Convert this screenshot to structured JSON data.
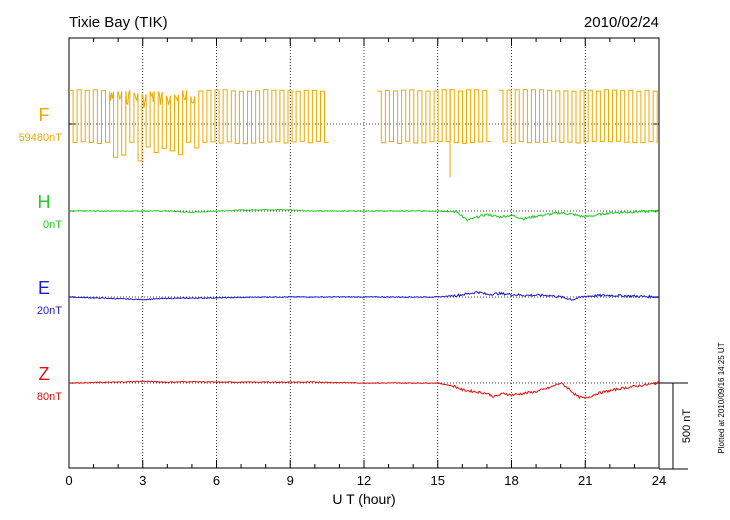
{
  "header": {
    "station": "Tixie Bay (TIK)",
    "date": "2010/02/24"
  },
  "footer": {
    "plotted": "Plotted at 2010/09/16 14:25 UT"
  },
  "colors": {
    "F": "#f0a800",
    "H": "#22cc22",
    "E": "#1a1acc",
    "Z": "#e01010",
    "axis": "#000000"
  },
  "chart_data": {
    "type": "line",
    "title": "Tixie Bay (TIK)",
    "xlabel": "U T (hour)",
    "xlim": [
      0,
      24
    ],
    "x_ticks": [
      "0",
      "3",
      "6",
      "9",
      "12",
      "15",
      "18",
      "21",
      "24"
    ],
    "grid": true,
    "scale_bar": "500 nT",
    "series": [
      {
        "name": "F",
        "baseline_label": "59480nT",
        "style": "square-wave",
        "gaps": [
          [
            10.4,
            12.4
          ],
          [
            17.0,
            17.3
          ]
        ],
        "spike": {
          "x": 15.5,
          "value": -310
        },
        "values_summary": {
          "high": 200,
          "low": -100,
          "noisy_range": [
            1.5,
            5.2
          ]
        }
      },
      {
        "name": "H",
        "baseline_label": "0nT",
        "x": [
          0,
          2,
          4,
          5,
          6,
          7,
          8,
          9,
          10,
          12,
          14,
          15,
          15.8,
          16.0,
          16.2,
          16.5,
          17.0,
          17.5,
          18.0,
          18.5,
          19.0,
          19.5,
          20.0,
          20.5,
          21.0,
          22.0,
          23.0,
          24.0
        ],
        "values": [
          0,
          0,
          0,
          -8,
          0,
          5,
          8,
          6,
          0,
          0,
          0,
          0,
          -5,
          -30,
          -55,
          -40,
          -20,
          -35,
          -25,
          -45,
          -30,
          -20,
          -10,
          -20,
          -35,
          -10,
          -5,
          0
        ]
      },
      {
        "name": "E",
        "baseline_label": "20nT",
        "x": [
          0,
          1,
          2,
          3,
          4,
          6,
          8,
          10,
          12,
          14,
          15,
          15.8,
          16.3,
          16.6,
          17.0,
          17.5,
          18.5,
          19.5,
          20.0,
          20.5,
          21.0,
          22.0,
          23.0,
          24.0
        ],
        "values": [
          0,
          -5,
          -10,
          -15,
          -8,
          -5,
          0,
          0,
          0,
          0,
          0,
          10,
          20,
          30,
          15,
          20,
          10,
          10,
          0,
          -15,
          5,
          10,
          5,
          0
        ]
      },
      {
        "name": "Z",
        "baseline_label": "80nT",
        "x": [
          0,
          2,
          3,
          4,
          5,
          6,
          8,
          10,
          12,
          14,
          15,
          15.7,
          16.0,
          16.5,
          17.0,
          17.3,
          17.7,
          18.0,
          18.5,
          19.0,
          19.5,
          20.0,
          20.3,
          20.7,
          21.0,
          21.5,
          22.5,
          23.5,
          24.0
        ],
        "values": [
          0,
          5,
          10,
          5,
          8,
          5,
          5,
          5,
          0,
          0,
          0,
          -20,
          -40,
          -50,
          -60,
          -80,
          -60,
          -70,
          -60,
          -50,
          -30,
          0,
          -30,
          -80,
          -90,
          -60,
          -30,
          -10,
          0
        ]
      }
    ]
  }
}
